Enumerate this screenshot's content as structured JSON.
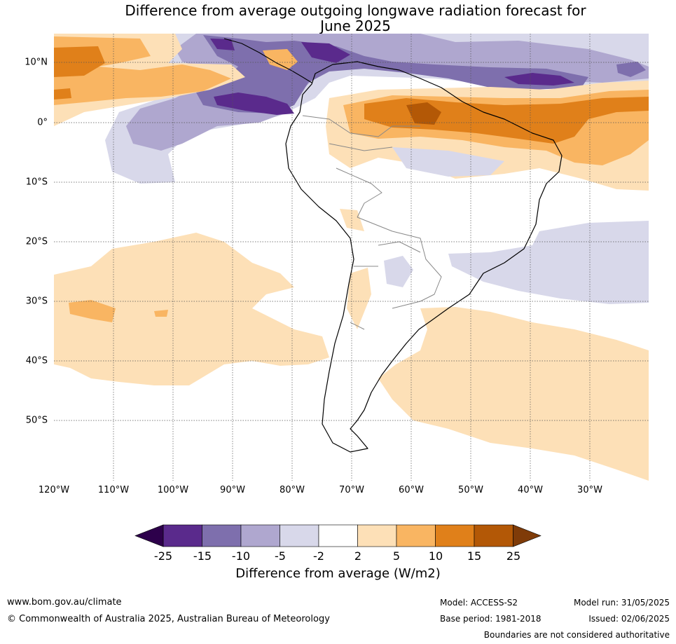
{
  "title_line1": "Difference from average outgoing longwave radiation forecast for",
  "title_line2": "June 2025",
  "lon_ticks": [
    "120°W",
    "110°W",
    "100°W",
    "90°W",
    "80°W",
    "70°W",
    "60°W",
    "50°W",
    "40°W",
    "30°W"
  ],
  "lat_ticks": [
    "10°N",
    "0°",
    "10°S",
    "20°S",
    "30°S",
    "40°S",
    "50°S"
  ],
  "colorbar": {
    "title": "Difference from average (W/m2)",
    "labels": [
      "-25",
      "-15",
      "-10",
      "-5",
      "-2",
      "2",
      "5",
      "10",
      "15",
      "25"
    ],
    "colors": [
      "#5a2a8c",
      "#7e6fad",
      "#afa7cf",
      "#d8d8ea",
      "#ffffff",
      "#fde0b7",
      "#f9b562",
      "#e0801a",
      "#b35806"
    ],
    "under_color": "#2d004b",
    "over_color": "#7f3b08"
  },
  "footer": {
    "url": "www.bom.gov.au/climate",
    "copyright": "© Commonwealth of Australia 2025, Australian Bureau of Meteorology",
    "model": "Model: ACCESS-S2",
    "base_period": "Base period: 1981-2018",
    "model_run": "Model run: 31/05/2025",
    "issued": "Issued: 02/06/2025",
    "disclaimer": "Boundaries are not considered authoritative"
  }
}
